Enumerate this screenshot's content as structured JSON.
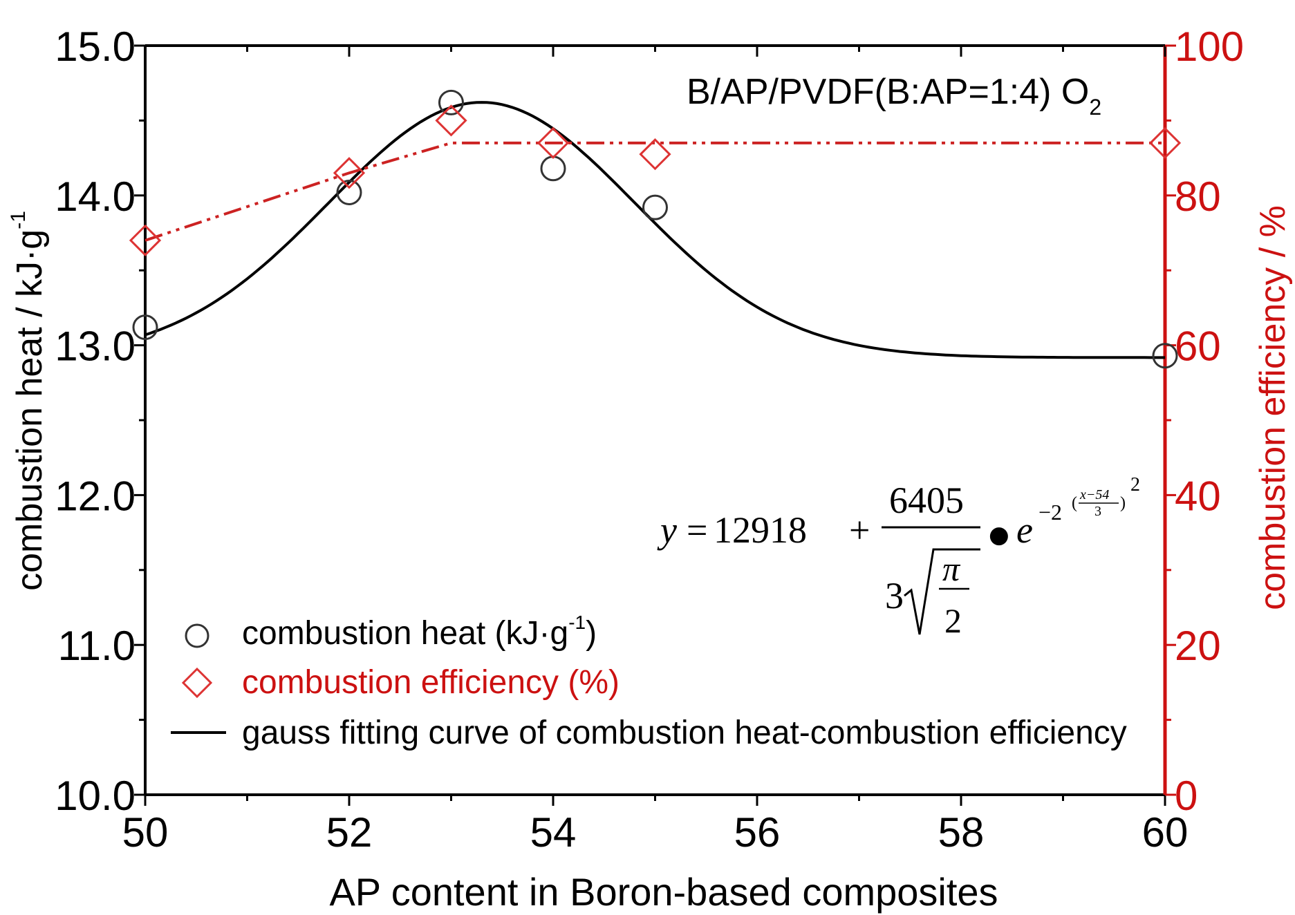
{
  "chart_data": {
    "type": "scatter",
    "title": "",
    "annotation": {
      "text": "B/AP/PVDF(B:AP=1:4) O",
      "subscript": "2"
    },
    "xlabel": "AP content in Boron-based composites",
    "ylabel": "combustion heat / kJ·g",
    "ylabel_sup": "-1",
    "ylabel_right": "combustion efficiency / %",
    "xlim": [
      50,
      60
    ],
    "ylim": [
      10.0,
      15.0
    ],
    "ylim_right": [
      0,
      100
    ],
    "x_ticks": [
      50,
      52,
      54,
      56,
      58,
      60
    ],
    "y_ticks": [
      "10.0",
      "11.0",
      "12.0",
      "13.0",
      "14.0",
      "15.0"
    ],
    "y_right_ticks": [
      "0",
      "20",
      "40",
      "60",
      "80",
      "100"
    ],
    "series": [
      {
        "name": "combustion heat (kJ·g",
        "name_sup": "-1",
        "name_suffix": ")",
        "axis": "left",
        "marker": "circle",
        "color": "#333333",
        "x": [
          50,
          52,
          53,
          54,
          55,
          60
        ],
        "y": [
          13.12,
          14.02,
          14.62,
          14.18,
          13.92,
          12.93
        ]
      },
      {
        "name": "combustion efficiency (%)",
        "axis": "right",
        "marker": "diamond",
        "color": "#cc2222",
        "x": [
          50,
          52,
          53,
          54,
          55,
          60
        ],
        "y": [
          74,
          83,
          90,
          87,
          85.5,
          87
        ]
      },
      {
        "name": "gauss fitting curve of combustion heat-combustion efficiency",
        "axis": "left",
        "type": "line",
        "color": "#000000"
      },
      {
        "axis": "right",
        "type": "line",
        "style": "dash-dot",
        "color": "#cc2222",
        "x": [
          50,
          52,
          53,
          60
        ],
        "y": [
          74,
          83,
          87,
          87
        ]
      }
    ],
    "formula": {
      "lhs": "y",
      "equals": "=",
      "constant": "12918",
      "plus": "+",
      "numerator": "6405",
      "coef": "3",
      "pi": "π",
      "two": "2",
      "dot": "●",
      "e": "e",
      "exp_prefix": "−2",
      "exp_num": "x−54",
      "exp_den": "3",
      "exp_pow": "2"
    },
    "colors": {
      "left_axis": "#000000",
      "right_axis": "#cc1111",
      "legend_red": "#cc1111"
    },
    "grid": false,
    "legend_position": "bottom-left"
  }
}
